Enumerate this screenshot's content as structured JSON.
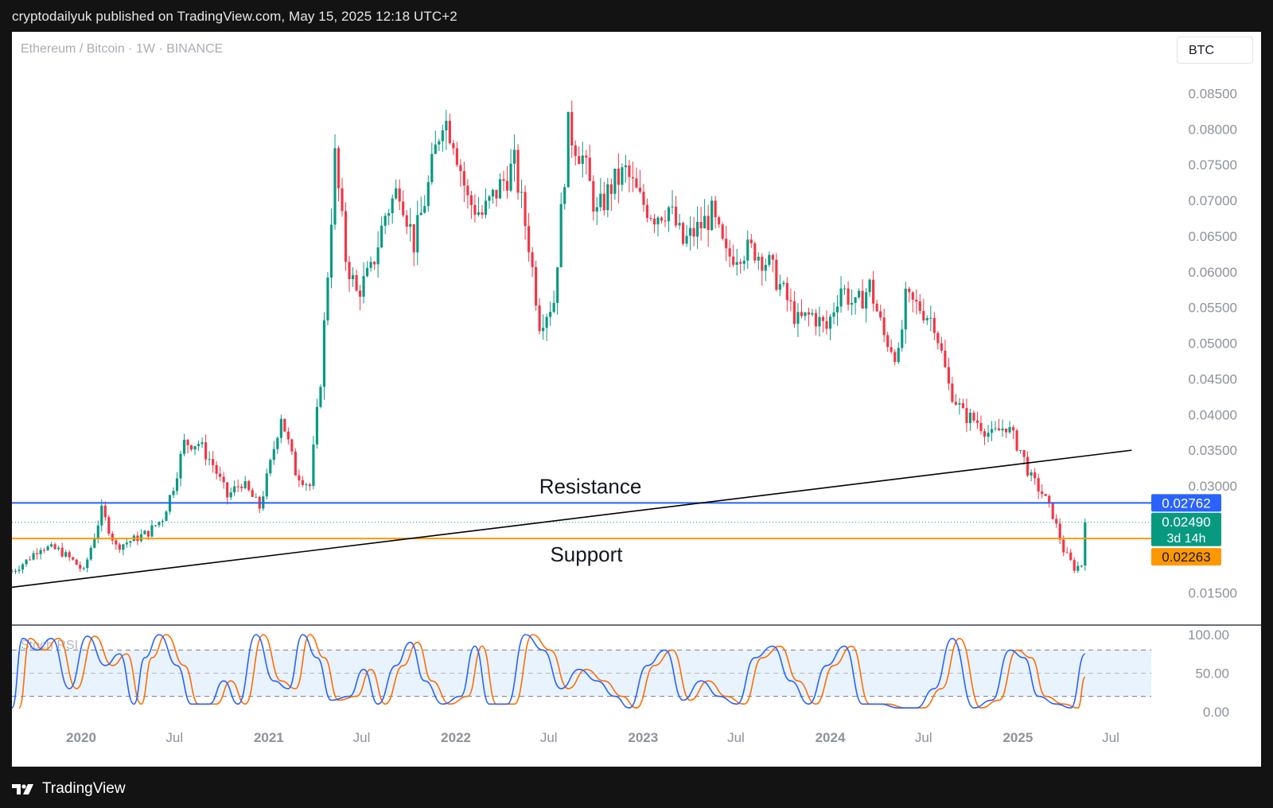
{
  "header": {
    "caption": "cryptodailyuk published on TradingView.com, May 15, 2025 12:18 UTC+2"
  },
  "chart_header": {
    "symbol": "Ethereum / Bitcoin · 1W · BINANCE",
    "currency": "BTC"
  },
  "footer": {
    "brand": "TradingView",
    "logo_icon": "tradingview-logo-icon"
  },
  "colors": {
    "up": "#089981",
    "down": "#f23645",
    "resistance": "#2962ff",
    "support": "#ff9800",
    "trendline": "#000000",
    "stoch_k": "#2962ff",
    "stoch_d": "#ff6d00",
    "axis_text": "#8d929c"
  },
  "chart_data": {
    "type": "candlestick",
    "pair": "ETH/BTC",
    "timeframe": "1W",
    "exchange": "BINANCE",
    "y_scale": "linear",
    "y_ticks": [
      "0.08500",
      "0.08000",
      "0.07500",
      "0.07000",
      "0.06500",
      "0.06000",
      "0.05500",
      "0.05000",
      "0.04500",
      "0.04000",
      "0.03500",
      "0.03000",
      "0.01500"
    ],
    "x_ticks": [
      {
        "label": "2020",
        "bold": true,
        "date": "2020-01-01"
      },
      {
        "label": "Jul",
        "bold": false,
        "date": "2020-07-01"
      },
      {
        "label": "2021",
        "bold": true,
        "date": "2021-01-01"
      },
      {
        "label": "Jul",
        "bold": false,
        "date": "2021-07-01"
      },
      {
        "label": "2022",
        "bold": true,
        "date": "2022-01-01"
      },
      {
        "label": "Jul",
        "bold": false,
        "date": "2022-07-01"
      },
      {
        "label": "2023",
        "bold": true,
        "date": "2023-01-01"
      },
      {
        "label": "Jul",
        "bold": false,
        "date": "2023-07-01"
      },
      {
        "label": "2024",
        "bold": true,
        "date": "2024-01-01"
      },
      {
        "label": "Jul",
        "bold": false,
        "date": "2024-07-01"
      },
      {
        "label": "2025",
        "bold": true,
        "date": "2025-01-01"
      },
      {
        "label": "Jul",
        "bold": false,
        "date": "2025-07-01"
      }
    ],
    "x_range": [
      "2019-08-19",
      "2025-09-15"
    ],
    "y_range": [
      0.0105,
      0.0885
    ],
    "price_path": [
      [
        "2019-08-19",
        0.018
      ],
      [
        "2019-09-16",
        0.0195
      ],
      [
        "2019-10-14",
        0.0215
      ],
      [
        "2019-11-18",
        0.021
      ],
      [
        "2019-12-16",
        0.0195
      ],
      [
        "2020-01-06",
        0.018
      ],
      [
        "2020-02-10",
        0.0265
      ],
      [
        "2020-03-09",
        0.0215
      ],
      [
        "2020-04-13",
        0.0225
      ],
      [
        "2020-05-11",
        0.0235
      ],
      [
        "2020-06-08",
        0.0255
      ],
      [
        "2020-06-29",
        0.03
      ],
      [
        "2020-07-20",
        0.036
      ],
      [
        "2020-08-17",
        0.036
      ],
      [
        "2020-09-14",
        0.033
      ],
      [
        "2020-10-12",
        0.0285
      ],
      [
        "2020-11-09",
        0.0305
      ],
      [
        "2020-12-14",
        0.027
      ],
      [
        "2021-01-04",
        0.033
      ],
      [
        "2021-01-25",
        0.04
      ],
      [
        "2021-02-22",
        0.032
      ],
      [
        "2021-03-22",
        0.03
      ],
      [
        "2021-04-12",
        0.045
      ],
      [
        "2021-04-26",
        0.06
      ],
      [
        "2021-05-10",
        0.076
      ],
      [
        "2021-05-31",
        0.062
      ],
      [
        "2021-06-21",
        0.057
      ],
      [
        "2021-07-19",
        0.06
      ],
      [
        "2021-08-16",
        0.068
      ],
      [
        "2021-09-13",
        0.072
      ],
      [
        "2021-10-11",
        0.064
      ],
      [
        "2021-11-08",
        0.072
      ],
      [
        "2021-12-06",
        0.082
      ],
      [
        "2021-12-27",
        0.079
      ],
      [
        "2022-01-24",
        0.07
      ],
      [
        "2022-02-21",
        0.068
      ],
      [
        "2022-03-28",
        0.072
      ],
      [
        "2022-04-25",
        0.075
      ],
      [
        "2022-05-23",
        0.064
      ],
      [
        "2022-06-13",
        0.053
      ],
      [
        "2022-07-11",
        0.056
      ],
      [
        "2022-08-08",
        0.08
      ],
      [
        "2022-09-05",
        0.076
      ],
      [
        "2022-10-03",
        0.068
      ],
      [
        "2022-10-31",
        0.072
      ],
      [
        "2022-11-28",
        0.074
      ],
      [
        "2022-12-26",
        0.07
      ],
      [
        "2023-01-23",
        0.068
      ],
      [
        "2023-02-20",
        0.069
      ],
      [
        "2023-03-20",
        0.064
      ],
      [
        "2023-04-17",
        0.066
      ],
      [
        "2023-05-15",
        0.068
      ],
      [
        "2023-06-12",
        0.062
      ],
      [
        "2023-07-10",
        0.063
      ],
      [
        "2023-08-07",
        0.063
      ],
      [
        "2023-09-04",
        0.061
      ],
      [
        "2023-10-02",
        0.057
      ],
      [
        "2023-10-30",
        0.053
      ],
      [
        "2023-11-27",
        0.054
      ],
      [
        "2023-12-25",
        0.052
      ],
      [
        "2024-01-22",
        0.058
      ],
      [
        "2024-02-19",
        0.055
      ],
      [
        "2024-03-18",
        0.058
      ],
      [
        "2024-04-15",
        0.051
      ],
      [
        "2024-05-13",
        0.048
      ],
      [
        "2024-05-27",
        0.056
      ],
      [
        "2024-06-24",
        0.055
      ],
      [
        "2024-07-22",
        0.053
      ],
      [
        "2024-08-19",
        0.044
      ],
      [
        "2024-09-16",
        0.04
      ],
      [
        "2024-10-14",
        0.039
      ],
      [
        "2024-11-11",
        0.037
      ],
      [
        "2024-12-09",
        0.0385
      ],
      [
        "2025-01-06",
        0.035
      ],
      [
        "2025-01-27",
        0.031
      ],
      [
        "2025-02-17",
        0.029
      ],
      [
        "2025-03-10",
        0.026
      ],
      [
        "2025-03-31",
        0.021
      ],
      [
        "2025-04-21",
        0.0185
      ],
      [
        "2025-05-05",
        0.019
      ],
      [
        "2025-05-12",
        0.0249
      ]
    ],
    "lines": {
      "resistance": {
        "label": "Resistance",
        "price": 0.02762
      },
      "support": {
        "label": "Support",
        "price": 0.02263
      },
      "trendline": {
        "from": [
          "2019-08-19",
          0.0158
        ],
        "to": [
          "2025-08-11",
          0.035
        ]
      },
      "last_price": 0.0249
    },
    "price_labels": {
      "resistance": "0.02762",
      "last": "0.02490",
      "countdown": "3d 14h",
      "support": "0.02263"
    },
    "stoch_rsi": {
      "name": "Stoch RSI",
      "y_range": [
        0,
        100
      ],
      "ticks": [
        "100.00",
        "50.00",
        "0.00"
      ],
      "upper_band": 80,
      "lower_band": 20,
      "k_path": [
        [
          "2019-08-19",
          5
        ],
        [
          "2019-09-09",
          95
        ],
        [
          "2019-10-07",
          80
        ],
        [
          "2019-11-04",
          95
        ],
        [
          "2019-12-09",
          30
        ],
        [
          "2020-01-13",
          98
        ],
        [
          "2020-02-17",
          60
        ],
        [
          "2020-03-16",
          75
        ],
        [
          "2020-04-13",
          10
        ],
        [
          "2020-05-04",
          70
        ],
        [
          "2020-06-01",
          100
        ],
        [
          "2020-07-06",
          60
        ],
        [
          "2020-08-03",
          10
        ],
        [
          "2020-09-07",
          10
        ],
        [
          "2020-10-05",
          40
        ],
        [
          "2020-11-02",
          10
        ],
        [
          "2020-12-07",
          100
        ],
        [
          "2021-01-11",
          40
        ],
        [
          "2021-02-08",
          30
        ],
        [
          "2021-03-08",
          100
        ],
        [
          "2021-04-05",
          70
        ],
        [
          "2021-05-03",
          15
        ],
        [
          "2021-06-07",
          20
        ],
        [
          "2021-07-05",
          55
        ],
        [
          "2021-08-02",
          10
        ],
        [
          "2021-09-06",
          60
        ],
        [
          "2021-10-04",
          90
        ],
        [
          "2021-11-01",
          40
        ],
        [
          "2021-12-06",
          10
        ],
        [
          "2022-01-10",
          20
        ],
        [
          "2022-02-07",
          85
        ],
        [
          "2022-03-07",
          10
        ],
        [
          "2022-04-11",
          10
        ],
        [
          "2022-05-16",
          100
        ],
        [
          "2022-06-20",
          80
        ],
        [
          "2022-07-25",
          30
        ],
        [
          "2022-08-29",
          55
        ],
        [
          "2022-10-03",
          40
        ],
        [
          "2022-11-07",
          20
        ],
        [
          "2022-12-05",
          5
        ],
        [
          "2023-01-09",
          60
        ],
        [
          "2023-02-13",
          80
        ],
        [
          "2023-03-20",
          15
        ],
        [
          "2023-04-24",
          40
        ],
        [
          "2023-05-29",
          20
        ],
        [
          "2023-07-03",
          10
        ],
        [
          "2023-08-07",
          70
        ],
        [
          "2023-09-11",
          85
        ],
        [
          "2023-10-16",
          40
        ],
        [
          "2023-11-20",
          10
        ],
        [
          "2023-12-25",
          60
        ],
        [
          "2024-01-29",
          85
        ],
        [
          "2024-03-04",
          10
        ],
        [
          "2024-04-08",
          10
        ],
        [
          "2024-05-13",
          5
        ],
        [
          "2024-06-17",
          5
        ],
        [
          "2024-07-22",
          30
        ],
        [
          "2024-08-26",
          95
        ],
        [
          "2024-10-07",
          5
        ],
        [
          "2024-11-11",
          15
        ],
        [
          "2024-12-16",
          80
        ],
        [
          "2025-01-13",
          70
        ],
        [
          "2025-02-10",
          20
        ],
        [
          "2025-03-17",
          10
        ],
        [
          "2025-04-14",
          5
        ],
        [
          "2025-05-12",
          75
        ]
      ],
      "d_lag_weeks": 2
    }
  }
}
